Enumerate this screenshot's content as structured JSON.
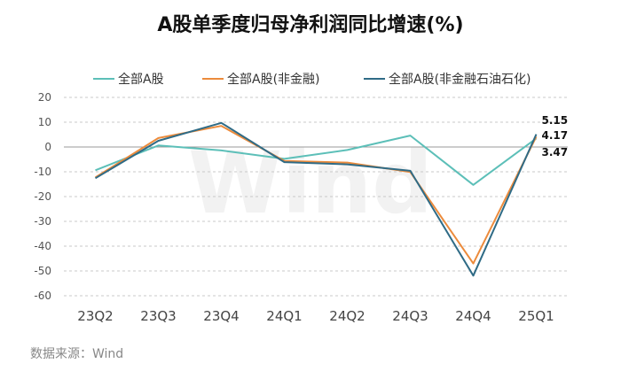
{
  "chart_data": {
    "type": "line",
    "title": "A股单季度归母净利润同比增速(%)",
    "categories": [
      "23Q2",
      "23Q3",
      "23Q4",
      "24Q1",
      "24Q2",
      "24Q3",
      "24Q4",
      "25Q1"
    ],
    "series": [
      {
        "name": "全部A股",
        "color": "#5cbfb8",
        "values": [
          -9.4,
          0.6,
          -1.4,
          -4.8,
          -1.2,
          4.6,
          -15.3,
          3.47
        ]
      },
      {
        "name": "全部A股(非金融)",
        "color": "#ec8b3c",
        "values": [
          -12.3,
          3.6,
          8.5,
          -5.6,
          -6.3,
          -10.1,
          -47.0,
          4.17
        ]
      },
      {
        "name": "全部A股(非金融石油石化)",
        "color": "#2f6b86",
        "values": [
          -12.6,
          2.5,
          9.7,
          -6.1,
          -7.0,
          -9.6,
          -51.9,
          5.15
        ]
      }
    ],
    "ylim": [
      -60,
      20
    ],
    "yticks": [
      -60,
      -50,
      -40,
      -30,
      -20,
      -10,
      0,
      10,
      20
    ],
    "end_labels": [
      "5.15",
      "4.17",
      "3.47"
    ],
    "grid": true,
    "legend_position": "top",
    "watermark": "Wind"
  },
  "source": "数据来源：Wind"
}
